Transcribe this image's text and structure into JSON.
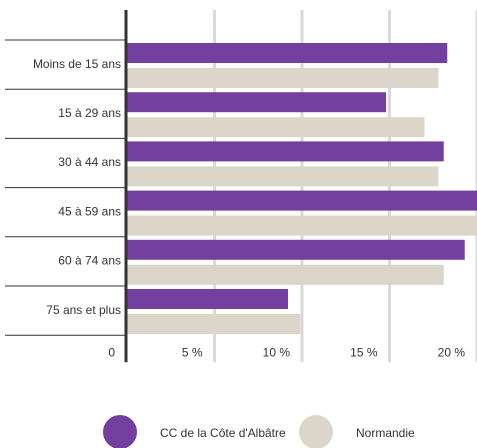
{
  "chart_data": {
    "type": "hbar",
    "categories": [
      "Moins de 15 ans",
      "15 à 29 ans",
      "30 à 44 ans",
      "45 à 59 ans",
      "60 à 74 ans",
      "75 ans et plus"
    ],
    "series": [
      {
        "name": "CC de la Côte d'Albâtre",
        "color": "#7440a0",
        "values": [
          18.3,
          14.8,
          18.1,
          20.0,
          19.3,
          9.2
        ]
      },
      {
        "name": "Normandie",
        "color": "#dcd6ca",
        "values": [
          17.8,
          17.0,
          17.8,
          20.0,
          18.1,
          9.9
        ]
      }
    ],
    "xlim": [
      0,
      20
    ],
    "xticks": [
      0,
      {
        "value": 5,
        "label": "5 %"
      },
      {
        "value": 10,
        "label": "10 %"
      },
      {
        "value": 15,
        "label": "15 %"
      },
      {
        "value": 20,
        "label": "20 %"
      }
    ],
    "grid": true
  }
}
